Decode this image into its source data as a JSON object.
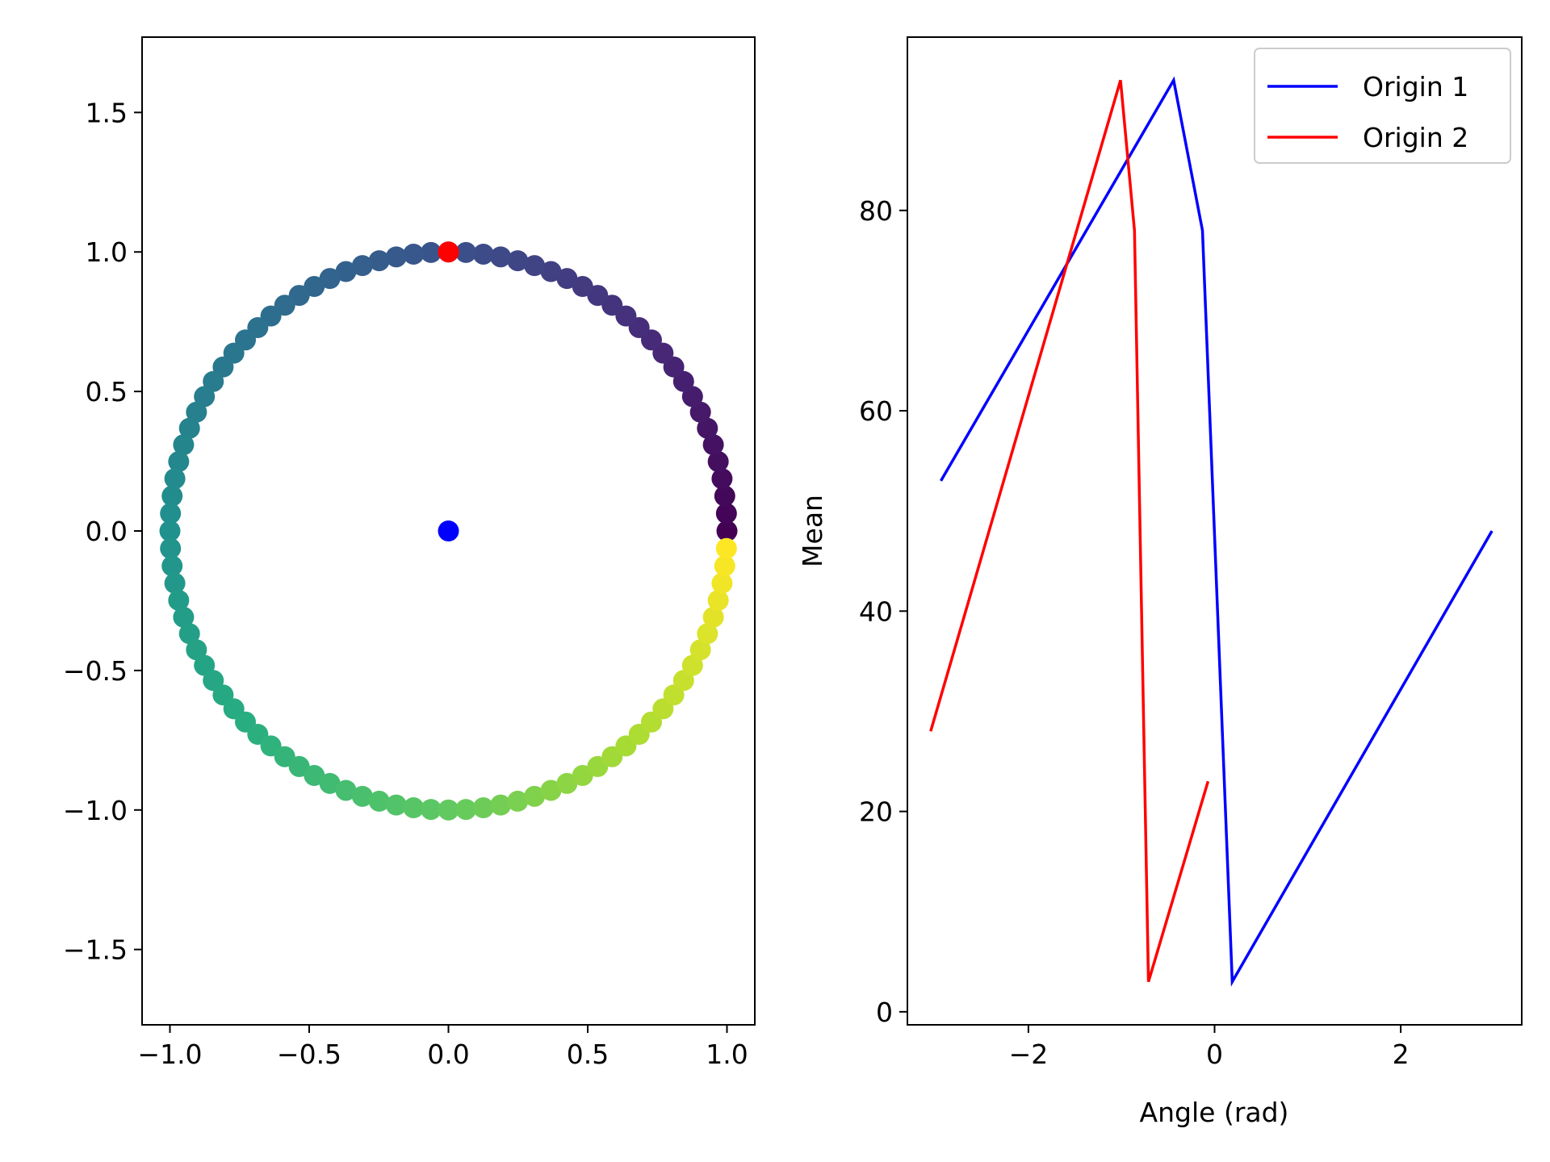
{
  "chart_data": [
    {
      "type": "scatter",
      "title": "",
      "xlabel": "",
      "ylabel": "",
      "xlim": [
        -1.1,
        1.1
      ],
      "ylim": [
        -1.77,
        1.77
      ],
      "xticks": [
        -1.0,
        -0.5,
        0.0,
        0.5,
        1.0
      ],
      "xtick_labels": [
        "−1.0",
        "−0.5",
        "0.0",
        "0.5",
        "1.0"
      ],
      "yticks": [
        -1.5,
        -1.0,
        -0.5,
        0.0,
        0.5,
        1.0,
        1.5
      ],
      "ytick_labels": [
        "−1.5",
        "−1.0",
        "−0.5",
        "0.0",
        "0.5",
        "1.0",
        "1.5"
      ],
      "ring": {
        "radius": 1.0,
        "point_count": 100,
        "start_angle_deg": 0,
        "end_angle_deg": 356.4,
        "colormap": "viridis"
      },
      "markers": [
        {
          "x": 0.0,
          "y": 0.0,
          "color": "#0000ff"
        },
        {
          "x": 0.0,
          "y": 1.0,
          "color": "#ff0000"
        }
      ],
      "grid": false
    },
    {
      "type": "line",
      "title": "",
      "xlabel": "Angle (rad)",
      "ylabel": "Mean",
      "xlim": [
        -3.3,
        3.3
      ],
      "ylim": [
        -1.3,
        97.3
      ],
      "xticks": [
        -2,
        0,
        2
      ],
      "xtick_labels": [
        "−2",
        "0",
        "2"
      ],
      "yticks": [
        0,
        20,
        40,
        60,
        80
      ],
      "ytick_labels": [
        "0",
        "20",
        "40",
        "60",
        "80"
      ],
      "legend": "top-right",
      "grid": false,
      "series": [
        {
          "name": "Origin 1",
          "color": "#0000ff",
          "x": [
            -2.94,
            -0.44,
            -0.13,
            0.19,
            2.98
          ],
          "y": [
            53,
            93,
            78,
            3,
            48
          ]
        },
        {
          "name": "Origin 2",
          "color": "#ff0000",
          "x": [
            -3.05,
            -1.01,
            -0.86,
            -0.71,
            -0.07
          ],
          "y": [
            28,
            93,
            78,
            3,
            23
          ]
        }
      ]
    }
  ]
}
